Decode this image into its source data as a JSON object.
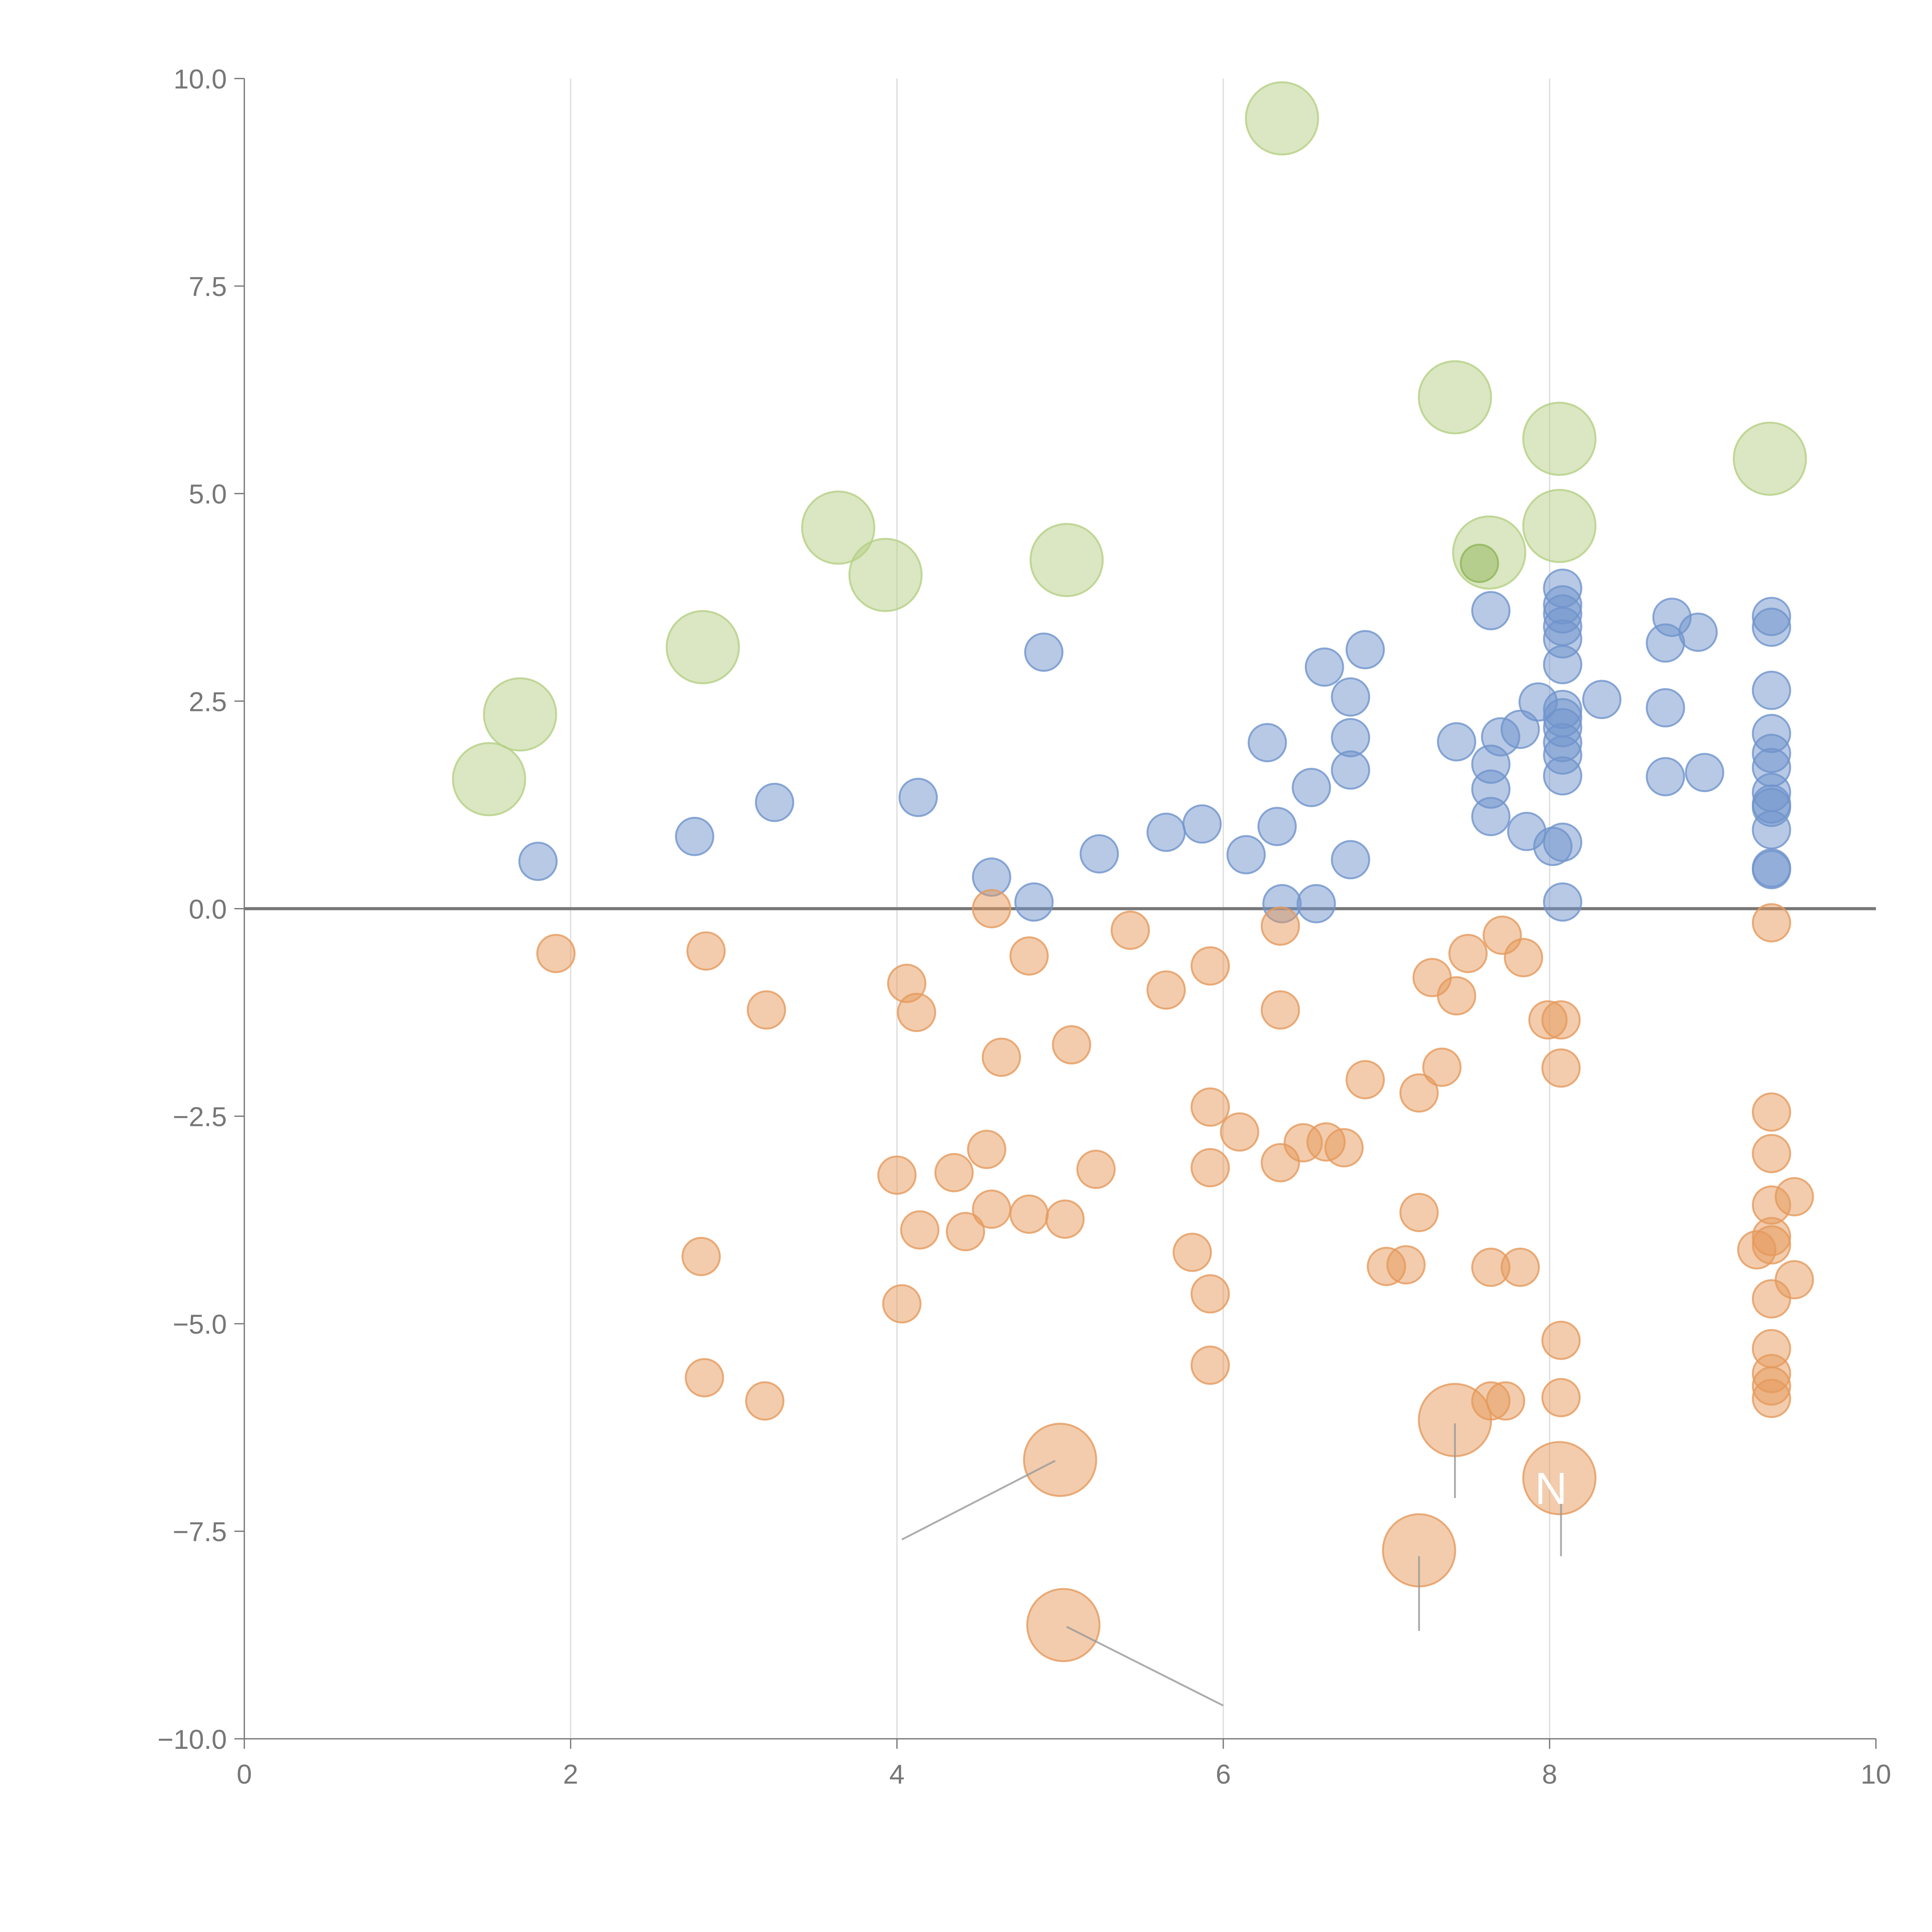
{
  "chart_data": {
    "type": "scatter",
    "title": "",
    "xlabel": "",
    "ylabel": "",
    "xlim": [
      0,
      10
    ],
    "ylim": [
      -10,
      10
    ],
    "x_ticks": [
      "0",
      "2",
      "4",
      "6",
      "8",
      "10"
    ],
    "y_ticks": [
      "10.0",
      "7.5",
      "5.0",
      "2.5",
      "0.0",
      "−2.5",
      "−5.0",
      "−7.5",
      "−10.0"
    ],
    "grid": "vertical",
    "series": [
      {
        "name": "blue",
        "color": "#6f94cc",
        "size": 1,
        "points": [
          [
            1.8,
            0.57
          ],
          [
            2.76,
            0.87
          ],
          [
            3.25,
            1.28
          ],
          [
            4.13,
            1.34
          ],
          [
            4.9,
            3.09
          ],
          [
            4.58,
            0.38
          ],
          [
            4.84,
            0.08
          ],
          [
            5.24,
            0.66
          ],
          [
            5.65,
            0.92
          ],
          [
            5.87,
            1.02
          ],
          [
            6.14,
            0.65
          ],
          [
            6.27,
            2.0
          ],
          [
            6.33,
            0.99
          ],
          [
            6.36,
            0.06
          ],
          [
            6.54,
            1.46
          ],
          [
            6.57,
            0.06
          ],
          [
            6.62,
            2.91
          ],
          [
            6.78,
            2.55
          ],
          [
            6.78,
            2.06
          ],
          [
            6.78,
            1.67
          ],
          [
            6.78,
            0.59
          ],
          [
            6.87,
            3.12
          ],
          [
            7.43,
            2.01
          ],
          [
            7.64,
            3.59
          ],
          [
            7.64,
            1.74
          ],
          [
            7.64,
            1.44
          ],
          [
            7.64,
            1.11
          ],
          [
            7.7,
            2.07
          ],
          [
            7.82,
            2.16
          ],
          [
            7.86,
            0.93
          ],
          [
            7.93,
            2.49
          ],
          [
            8.02,
            0.75
          ],
          [
            8.08,
            0.8
          ],
          [
            8.08,
            3.86
          ],
          [
            8.08,
            3.66
          ],
          [
            8.08,
            3.55
          ],
          [
            8.08,
            3.4
          ],
          [
            8.08,
            3.25
          ],
          [
            8.08,
            2.94
          ],
          [
            8.08,
            2.4
          ],
          [
            8.08,
            2.3
          ],
          [
            8.08,
            2.18
          ],
          [
            8.08,
            2.0
          ],
          [
            8.08,
            1.85
          ],
          [
            8.08,
            1.6
          ],
          [
            8.08,
            0.08
          ],
          [
            8.32,
            2.52
          ],
          [
            8.71,
            3.2
          ],
          [
            8.75,
            3.51
          ],
          [
            8.91,
            3.33
          ],
          [
            8.71,
            2.42
          ],
          [
            8.71,
            1.59
          ],
          [
            8.95,
            1.64
          ],
          [
            9.36,
            3.52
          ],
          [
            9.36,
            3.39
          ],
          [
            9.36,
            2.63
          ],
          [
            9.36,
            2.11
          ],
          [
            9.36,
            1.87
          ],
          [
            9.36,
            1.7
          ],
          [
            9.36,
            1.4
          ],
          [
            9.36,
            1.26
          ],
          [
            9.36,
            1.22
          ],
          [
            9.36,
            0.95
          ],
          [
            9.36,
            0.49
          ],
          [
            9.36,
            0.47
          ]
        ]
      },
      {
        "name": "orange",
        "color": "#e59a5c",
        "size": 1,
        "points": [
          [
            1.91,
            -0.54
          ],
          [
            2.83,
            -0.51
          ],
          [
            3.2,
            -1.22
          ],
          [
            2.8,
            -4.19
          ],
          [
            2.82,
            -5.65
          ],
          [
            3.19,
            -5.93
          ],
          [
            4.0,
            -3.21
          ],
          [
            4.06,
            -0.9
          ],
          [
            4.12,
            -1.25
          ],
          [
            4.14,
            -3.87
          ],
          [
            4.03,
            -4.76
          ],
          [
            4.35,
            -3.18
          ],
          [
            4.42,
            -3.89
          ],
          [
            4.55,
            -2.9
          ],
          [
            4.58,
            0.0
          ],
          [
            4.58,
            -3.62
          ],
          [
            4.64,
            -1.79
          ],
          [
            4.81,
            -0.57
          ],
          [
            4.81,
            -3.68
          ],
          [
            5.03,
            -3.74
          ],
          [
            5.07,
            -1.64
          ],
          [
            5.22,
            -3.14
          ],
          [
            5.43,
            -0.26
          ],
          [
            5.65,
            -0.98
          ],
          [
            5.81,
            -4.14
          ],
          [
            5.92,
            -0.69
          ],
          [
            5.92,
            -2.39
          ],
          [
            5.92,
            -3.12
          ],
          [
            5.92,
            -4.64
          ],
          [
            5.92,
            -5.5
          ],
          [
            6.1,
            -2.69
          ],
          [
            6.35,
            -0.21
          ],
          [
            6.35,
            -1.22
          ],
          [
            6.35,
            -3.06
          ],
          [
            6.49,
            -2.82
          ],
          [
            6.63,
            -2.81
          ],
          [
            6.74,
            -2.88
          ],
          [
            6.87,
            -2.06
          ],
          [
            7.0,
            -4.31
          ],
          [
            7.12,
            -4.29
          ],
          [
            7.2,
            -2.22
          ],
          [
            7.2,
            -3.66
          ],
          [
            7.28,
            -0.83
          ],
          [
            7.34,
            -1.91
          ],
          [
            7.43,
            -1.05
          ],
          [
            7.5,
            -0.54
          ],
          [
            7.64,
            -4.32
          ],
          [
            7.64,
            -5.93
          ],
          [
            7.71,
            -0.32
          ],
          [
            7.73,
            -5.93
          ],
          [
            7.82,
            -4.32
          ],
          [
            7.84,
            -0.59
          ],
          [
            7.99,
            -1.34
          ],
          [
            8.07,
            -1.34
          ],
          [
            8.07,
            -1.92
          ],
          [
            8.07,
            -5.2
          ],
          [
            8.07,
            -5.89
          ],
          [
            9.36,
            -0.17
          ],
          [
            9.36,
            -2.45
          ],
          [
            9.36,
            -2.95
          ],
          [
            9.36,
            -3.57
          ],
          [
            9.36,
            -3.95
          ],
          [
            9.36,
            -4.05
          ],
          [
            9.36,
            -4.7
          ],
          [
            9.36,
            -5.3
          ],
          [
            9.36,
            -5.6
          ],
          [
            9.36,
            -5.75
          ],
          [
            9.36,
            -5.9
          ],
          [
            9.27,
            -4.11
          ],
          [
            9.5,
            -3.47
          ],
          [
            9.5,
            -4.47
          ]
        ]
      },
      {
        "name": "orange-large",
        "color": "#e59a5c",
        "size": 4,
        "points": [
          [
            5.0,
            -6.64
          ],
          [
            7.42,
            -6.16
          ],
          [
            8.06,
            -6.86
          ],
          [
            7.2,
            -7.73
          ],
          [
            5.02,
            -8.63
          ]
        ]
      },
      {
        "name": "green-large",
        "color": "#b5cf85",
        "size": 4,
        "points": [
          [
            6.36,
            9.52
          ],
          [
            7.42,
            6.16
          ],
          [
            8.06,
            5.66
          ],
          [
            9.35,
            5.42
          ],
          [
            3.64,
            4.59
          ],
          [
            3.93,
            4.02
          ],
          [
            5.04,
            4.2
          ],
          [
            7.63,
            4.29
          ],
          [
            8.06,
            4.61
          ],
          [
            2.81,
            3.15
          ],
          [
            1.69,
            2.34
          ],
          [
            1.5,
            1.56
          ]
        ]
      },
      {
        "name": "green-small",
        "color": "#8fb55a",
        "size": 1,
        "points": [
          [
            7.57,
            4.16
          ]
        ]
      }
    ],
    "annotations": [
      {
        "text": "",
        "from": [
          4.97,
          -6.65
        ],
        "to": [
          4.03,
          -7.6
        ]
      },
      {
        "text": "",
        "from": [
          7.42,
          -6.2
        ],
        "to": [
          7.42,
          -7.1
        ]
      },
      {
        "text": "N",
        "from": [
          8.07,
          -6.9
        ],
        "to": [
          8.07,
          -7.8
        ]
      },
      {
        "text": "",
        "from": [
          7.2,
          -7.8
        ],
        "to": [
          7.2,
          -8.7
        ]
      },
      {
        "text": "",
        "from": [
          5.04,
          -8.65
        ],
        "to": [
          6.0,
          -9.6
        ]
      }
    ]
  }
}
